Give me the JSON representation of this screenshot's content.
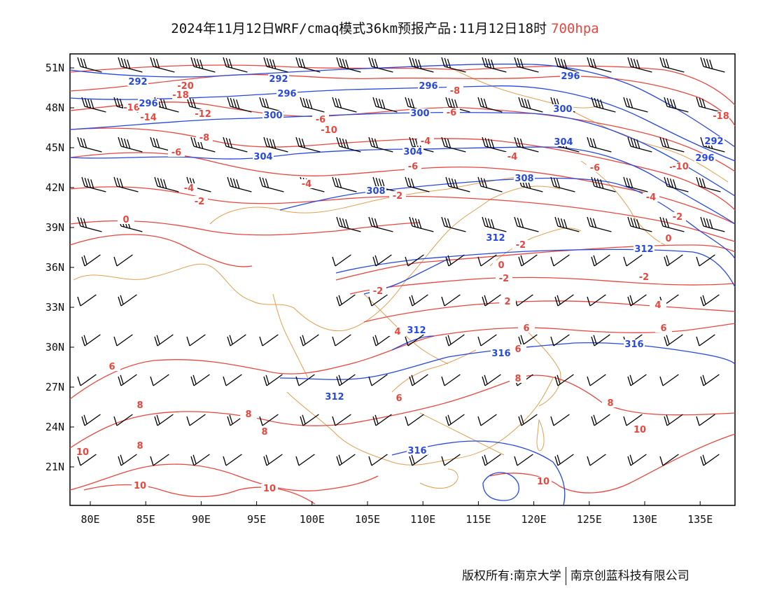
{
  "title": {
    "main": "2024年11月12日WRF/cmaq模式36km预报产品:11月12日18时",
    "level": "700hpa"
  },
  "colors": {
    "temperature": "#e8473f",
    "height": "#2748e0",
    "border": "#e0a050",
    "wind": "#000000"
  },
  "axes": {
    "x_ticks": [
      "80E",
      "85E",
      "90E",
      "95E",
      "100E",
      "105E",
      "110E",
      "115E",
      "120E",
      "125E",
      "130E",
      "135E"
    ],
    "y_ticks": [
      "51N",
      "48N",
      "45N",
      "42N",
      "39N",
      "36N",
      "33N",
      "30N",
      "27N",
      "24N",
      "21N"
    ]
  },
  "labels": {
    "temperature": [
      "-20",
      "-18",
      "-16",
      "-14",
      "-12",
      "-8",
      "-6",
      "-10",
      "-10",
      "-8",
      "-6",
      "-4",
      "-6",
      "-6",
      "-4",
      "-4",
      "-2",
      "-2",
      "-4",
      "-6",
      "-10",
      "-18",
      "-4",
      "-2",
      "0",
      "-2",
      "0",
      "-2",
      "-2",
      "0",
      "-2",
      "-2",
      "2",
      "4",
      "4",
      "6",
      "6",
      "6",
      "6",
      "8",
      "8",
      "8",
      "6",
      "8",
      "8",
      "8",
      "10",
      "10",
      "10",
      "10",
      "10"
    ],
    "height": [
      "292",
      "292",
      "296",
      "296",
      "296",
      "296",
      "300",
      "300",
      "300",
      "304",
      "304",
      "304",
      "308",
      "308",
      "312",
      "312",
      "312",
      "312",
      "316",
      "316",
      "316",
      "292",
      "296"
    ]
  },
  "footer": {
    "left": "版权所有:南京大学",
    "right": "南京创蓝科技有限公司"
  }
}
